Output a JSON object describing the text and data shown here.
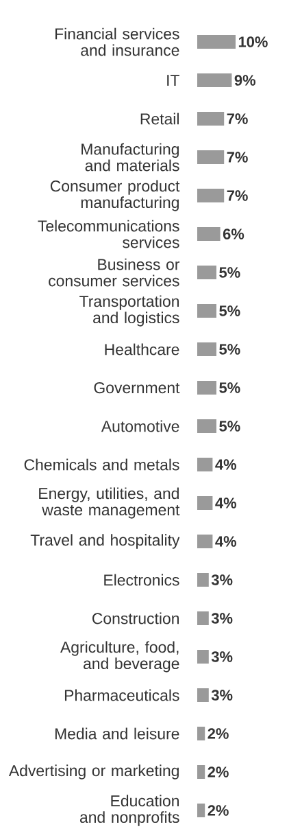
{
  "chart_data": {
    "type": "bar",
    "orientation": "horizontal",
    "color": "#9a9a9a",
    "categories": [
      "Financial services and insurance",
      "IT",
      "Retail",
      "Manufacturing and materials",
      "Consumer product manufacturing",
      "Telecommunications services",
      "Business or consumer services",
      "Transportation and logistics",
      "Healthcare",
      "Government",
      "Automotive",
      "Chemicals and metals",
      "Energy, utilities, and waste management",
      "Travel and hospitality",
      "Electronics",
      "Construction",
      "Agriculture, food, and beverage",
      "Pharmaceuticals",
      "Media and leisure",
      "Advertising or marketing",
      "Education and nonprofits"
    ],
    "values": [
      10,
      9,
      7,
      7,
      7,
      6,
      5,
      5,
      5,
      5,
      5,
      4,
      4,
      4,
      3,
      3,
      3,
      3,
      2,
      2,
      2
    ],
    "value_labels": [
      "10%",
      "9%",
      "7%",
      "7%",
      "7%",
      "6%",
      "5%",
      "5%",
      "5%",
      "5%",
      "5%",
      "4%",
      "4%",
      "4%",
      "3%",
      "3%",
      "3%",
      "3%",
      "2%",
      "2%",
      "2%"
    ]
  }
}
